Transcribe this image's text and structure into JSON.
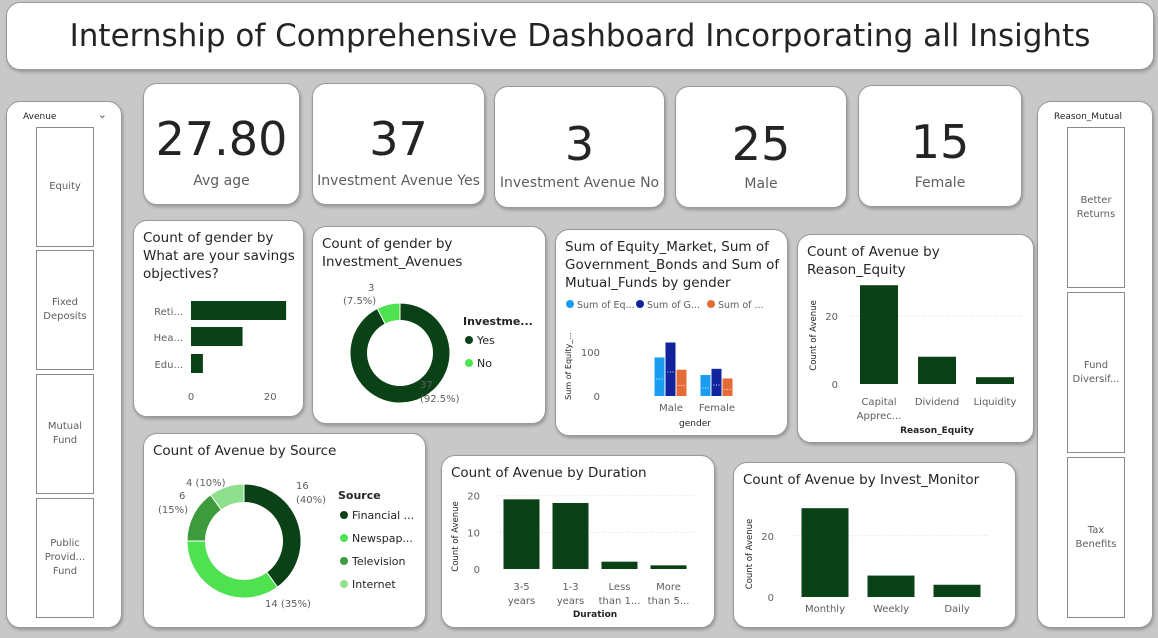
{
  "title": "Internship of Comprehensive Dashboard Incorporating all Insights",
  "colors": {
    "dark_green": "#0b4116",
    "bright_green": "#4ee150",
    "mid_green": "#3d9a3d",
    "light_green": "#8ee08f",
    "light_blue": "#1a9cf0",
    "navy": "#12239e",
    "orange": "#e66c37"
  },
  "avenue_slicer": {
    "header": "Avenue",
    "chevron_icon": "chevron-down-icon",
    "items": [
      "Equity",
      "Fixed\nDeposits",
      "Mutual\nFund",
      "Public\nProvid...\nFund"
    ]
  },
  "reason_slicer": {
    "header": "Reason_Mutual",
    "items": [
      "Better\nReturns",
      "Fund\nDiversif...",
      "Tax\nBenefits"
    ]
  },
  "kpis": [
    {
      "value": "27.80",
      "label": "Avg age"
    },
    {
      "value": "37",
      "label": "Investment Avenue Yes"
    },
    {
      "value": "3",
      "label": "Investment Avenue No"
    },
    {
      "value": "25",
      "label": "Male"
    },
    {
      "value": "15",
      "label": "Female"
    }
  ],
  "chart_data": [
    {
      "id": "savings",
      "type": "bar",
      "orientation": "horizontal",
      "title": "Count of gender by What are your savings objectives?",
      "categories": [
        "Reti...",
        "Hea...",
        "Edu..."
      ],
      "values": [
        24,
        13,
        3
      ],
      "xlim": [
        0,
        28
      ],
      "xticks": [
        0,
        20
      ]
    },
    {
      "id": "investment_avenues",
      "type": "pie",
      "donut": true,
      "title": "Count of gender by Investment_Avenues",
      "legend_title": "Investme...",
      "labels": [
        "Yes",
        "No"
      ],
      "values": [
        37,
        3
      ],
      "data_labels": [
        [
          "37",
          "(92.5%)"
        ],
        [
          "3",
          "(7.5%)"
        ]
      ]
    },
    {
      "id": "gender_sums",
      "type": "bar",
      "title": "Sum of Equity_Market, Sum of Government_Bonds and Sum of Mutual_Funds by gender",
      "legend": [
        "Sum of Eq...",
        "Sum of G...",
        "Sum of ..."
      ],
      "categories": [
        "Male",
        "Female"
      ],
      "series": [
        {
          "name": "Sum of Equity_Market",
          "values": [
            88,
            48
          ]
        },
        {
          "name": "Sum of Government_Bonds",
          "values": [
            122,
            62
          ]
        },
        {
          "name": "Sum of Mutual_Funds",
          "values": [
            60,
            40
          ]
        }
      ],
      "ylabel": "Sum of Equity_...",
      "xlabel": "gender",
      "ylim": [
        0,
        130
      ],
      "yticks": [
        0,
        100
      ]
    },
    {
      "id": "reason_equity",
      "type": "bar",
      "title": "Count of Avenue by Reason_Equity",
      "categories": [
        [
          "Capital",
          "Apprec..."
        ],
        [
          "Dividend"
        ],
        [
          "Liquidity"
        ]
      ],
      "values": [
        29,
        8,
        2
      ],
      "ylabel": "Count of Avenue",
      "xlabel": "Reason_Equity",
      "ylim": [
        0,
        32
      ],
      "yticks": [
        0,
        20
      ]
    },
    {
      "id": "source",
      "type": "pie",
      "donut": true,
      "title": "Count of Avenue by Source",
      "legend_title": "Source",
      "labels": [
        "Financial ...",
        "Newspap...",
        "Television",
        "Internet"
      ],
      "values": [
        16,
        14,
        6,
        4
      ],
      "data_labels": [
        [
          "16",
          "(40%)"
        ],
        [
          "14 (35%)"
        ],
        [
          "6",
          "(15%)"
        ],
        [
          "4 (10%)"
        ]
      ]
    },
    {
      "id": "duration",
      "type": "bar",
      "title": "Count of Avenue by Duration",
      "categories": [
        [
          "3-5",
          "years"
        ],
        [
          "1-3",
          "years"
        ],
        [
          "Less",
          "than 1..."
        ],
        [
          "More",
          "than 5..."
        ]
      ],
      "values": [
        19,
        18,
        2,
        1
      ],
      "ylabel": "Count of Avenue",
      "xlabel": "Duration",
      "ylim": [
        0,
        21
      ],
      "yticks": [
        0,
        10,
        20
      ]
    },
    {
      "id": "invest_monitor",
      "type": "bar",
      "title": "Count of Avenue by Invest_Monitor",
      "categories": [
        [
          "Monthly"
        ],
        [
          "Weekly"
        ],
        [
          "Daily"
        ]
      ],
      "values": [
        29,
        7,
        4
      ],
      "ylabel": "Count of Avenue",
      "ylim": [
        0,
        32
      ],
      "yticks": [
        0,
        20
      ]
    }
  ]
}
